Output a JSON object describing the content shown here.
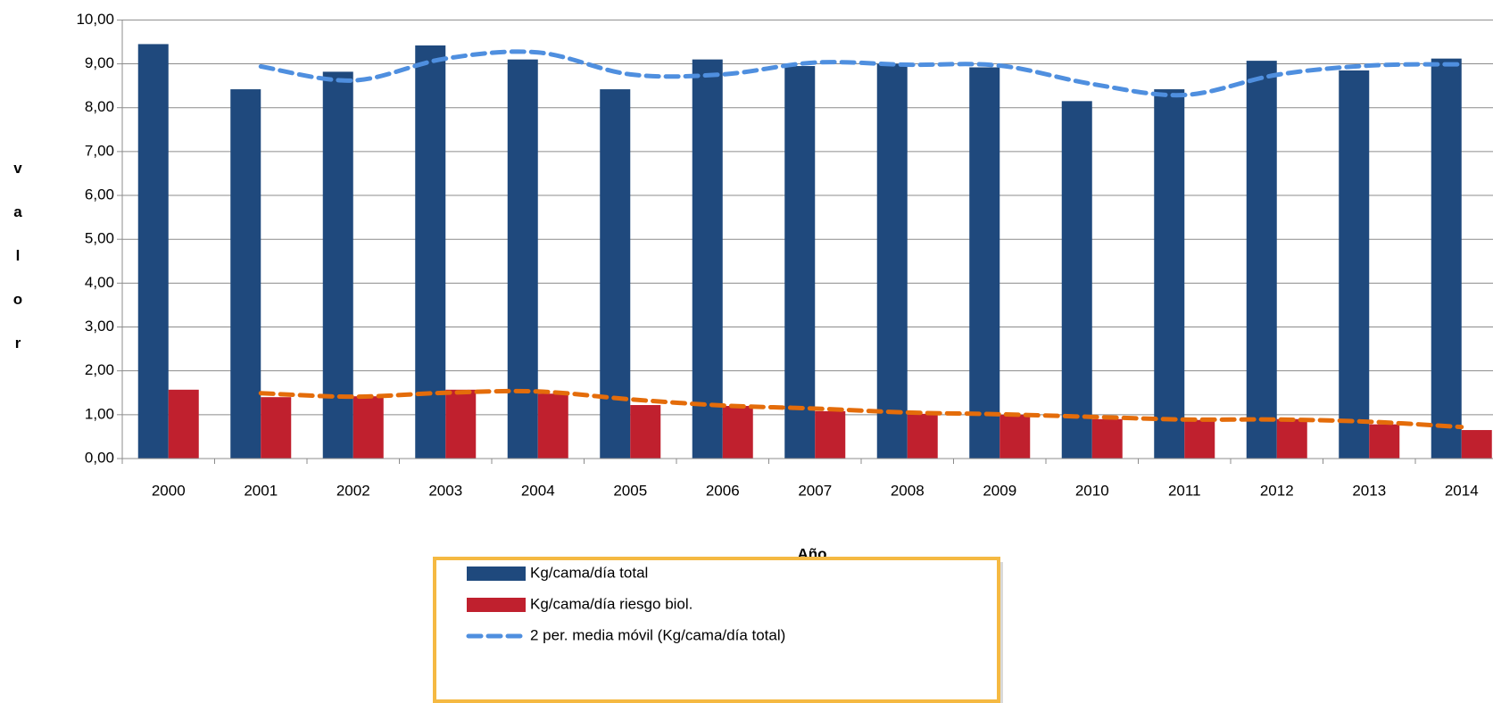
{
  "chart_data": {
    "type": "bar",
    "x_label": "Año",
    "y_label": "valor",
    "categories": [
      "2000",
      "2001",
      "2002",
      "2003",
      "2004",
      "2005",
      "2006",
      "2007",
      "2008",
      "2009",
      "2010",
      "2011",
      "2012",
      "2013",
      "2014"
    ],
    "series": [
      {
        "name": "Kg/cama/día total",
        "color": "#1f497d",
        "kind": "bar",
        "values": [
          9.45,
          8.42,
          8.82,
          9.42,
          9.1,
          8.42,
          9.1,
          8.95,
          9.0,
          8.92,
          8.15,
          8.42,
          9.07,
          8.85,
          9.12
        ]
      },
      {
        "name": "Kg/cama/día riesgo biol.",
        "color": "#c0202e",
        "kind": "bar",
        "values": [
          1.57,
          1.4,
          1.42,
          1.57,
          1.48,
          1.22,
          1.2,
          1.08,
          1.02,
          1.0,
          0.9,
          0.88,
          0.9,
          0.78,
          0.65
        ]
      },
      {
        "name": "2 per. media móvil (Kg/cama/día total)",
        "color": "#4f8fdf",
        "kind": "line",
        "values": [
          null,
          8.94,
          8.62,
          9.12,
          9.26,
          8.76,
          8.76,
          9.03,
          8.98,
          8.96,
          8.54,
          8.29,
          8.75,
          8.96,
          8.99
        ]
      },
      {
        "color": "#e46c0a",
        "kind": "line",
        "values": [
          null,
          1.49,
          1.41,
          1.5,
          1.53,
          1.35,
          1.21,
          1.14,
          1.05,
          1.01,
          0.95,
          0.89,
          0.89,
          0.84,
          0.72
        ]
      }
    ],
    "ylim": [
      0,
      10
    ],
    "yticks": [
      {
        "value": 0,
        "label": "0,00"
      },
      {
        "value": 1,
        "label": "1,00"
      },
      {
        "value": 2,
        "label": "2,00"
      },
      {
        "value": 3,
        "label": "3,00"
      },
      {
        "value": 4,
        "label": "4,00"
      },
      {
        "value": 5,
        "label": "5,00"
      },
      {
        "value": 6,
        "label": "6,00"
      },
      {
        "value": 7,
        "label": "7,00"
      },
      {
        "value": 8,
        "label": "8,00"
      },
      {
        "value": 9,
        "label": "9,00"
      },
      {
        "value": 10,
        "label": "10,00"
      }
    ],
    "grid": true
  }
}
